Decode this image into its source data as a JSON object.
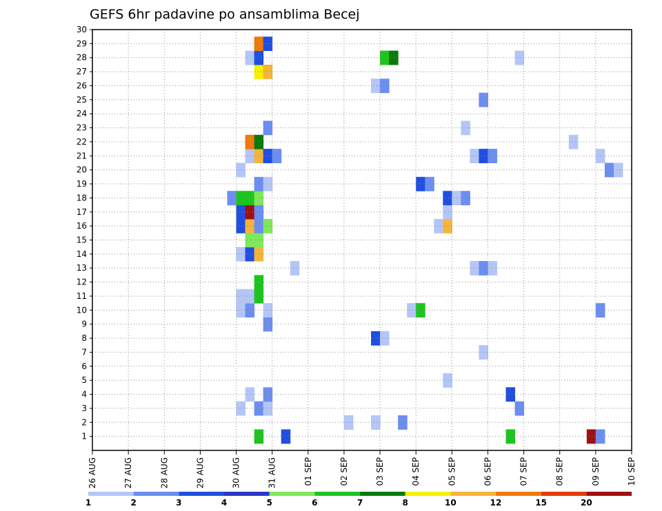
{
  "chart_data": {
    "type": "heatmap",
    "title": "GEFS 6hr padavine po ansamblima Becej",
    "x_labels": [
      "26 AUG",
      "27 AUG",
      "28 AUG",
      "29 AUG",
      "30 AUG",
      "31 AUG",
      "01 SEP",
      "02 SEP",
      "03 SEP",
      "04 SEP",
      "05 SEP",
      "06 SEP",
      "07 SEP",
      "08 SEP",
      "09 SEP",
      "10 SEP"
    ],
    "y_labels": [
      "1",
      "2",
      "3",
      "4",
      "5",
      "6",
      "7",
      "8",
      "9",
      "10",
      "11",
      "12",
      "13",
      "14",
      "15",
      "16",
      "17",
      "18",
      "19",
      "20",
      "21",
      "22",
      "23",
      "24",
      "25",
      "26",
      "27",
      "28",
      "29",
      "30"
    ],
    "y_range": [
      0,
      30
    ],
    "x_range_days": [
      0,
      15
    ],
    "grid": true,
    "colorbar": {
      "labels": [
        "1",
        "2",
        "3",
        "4",
        "5",
        "6",
        "7",
        "8",
        "10",
        "12",
        "15",
        "20"
      ],
      "colors": [
        "#b3c6f7",
        "#6b8ef0",
        "#1f4fe0",
        "#2a36c8",
        "#7ee85a",
        "#1ec41e",
        "#0a7a0a",
        "#f5f000",
        "#f5b43a",
        "#f07a0a",
        "#e03c0a",
        "#a01010",
        "#5a0a14"
      ]
    },
    "cells": [
      {
        "t": 18,
        "m": 1,
        "c": 6
      },
      {
        "t": 21,
        "m": 1,
        "c": 3
      },
      {
        "t": 46,
        "m": 1,
        "c": 6
      },
      {
        "t": 55,
        "m": 1,
        "c": 12
      },
      {
        "t": 56,
        "m": 1,
        "c": 2
      },
      {
        "t": 28,
        "m": 2,
        "c": 1
      },
      {
        "t": 31,
        "m": 2,
        "c": 1
      },
      {
        "t": 34,
        "m": 2,
        "c": 2
      },
      {
        "t": 16,
        "m": 3,
        "c": 1
      },
      {
        "t": 18,
        "m": 3,
        "c": 2
      },
      {
        "t": 19,
        "m": 3,
        "c": 1
      },
      {
        "t": 47,
        "m": 3,
        "c": 2
      },
      {
        "t": 17,
        "m": 4,
        "c": 1
      },
      {
        "t": 19,
        "m": 4,
        "c": 2
      },
      {
        "t": 46,
        "m": 4,
        "c": 3
      },
      {
        "t": 39,
        "m": 5,
        "c": 1
      },
      {
        "t": 43,
        "m": 7,
        "c": 1
      },
      {
        "t": 31,
        "m": 8,
        "c": 3
      },
      {
        "t": 32,
        "m": 8,
        "c": 1
      },
      {
        "t": 19,
        "m": 9,
        "c": 2
      },
      {
        "t": 16,
        "m": 10,
        "c": 1
      },
      {
        "t": 17,
        "m": 10,
        "c": 2
      },
      {
        "t": 19,
        "m": 10,
        "c": 1
      },
      {
        "t": 35,
        "m": 10,
        "c": 1
      },
      {
        "t": 36,
        "m": 10,
        "c": 6
      },
      {
        "t": 56,
        "m": 10,
        "c": 2
      },
      {
        "t": 16,
        "m": 11,
        "c": 1
      },
      {
        "t": 17,
        "m": 11,
        "c": 1
      },
      {
        "t": 18,
        "m": 11,
        "c": 6
      },
      {
        "t": 18,
        "m": 12,
        "c": 6
      },
      {
        "t": 22,
        "m": 13,
        "c": 1
      },
      {
        "t": 42,
        "m": 13,
        "c": 1
      },
      {
        "t": 43,
        "m": 13,
        "c": 2
      },
      {
        "t": 44,
        "m": 13,
        "c": 1
      },
      {
        "t": 16,
        "m": 14,
        "c": 1
      },
      {
        "t": 17,
        "m": 14,
        "c": 3
      },
      {
        "t": 18,
        "m": 14,
        "c": 9
      },
      {
        "t": 17,
        "m": 15,
        "c": 5
      },
      {
        "t": 18,
        "m": 15,
        "c": 5
      },
      {
        "t": 16,
        "m": 16,
        "c": 3
      },
      {
        "t": 17,
        "m": 16,
        "c": 9
      },
      {
        "t": 18,
        "m": 16,
        "c": 2
      },
      {
        "t": 19,
        "m": 16,
        "c": 5
      },
      {
        "t": 38,
        "m": 16,
        "c": 1
      },
      {
        "t": 39,
        "m": 16,
        "c": 9
      },
      {
        "t": 16,
        "m": 17,
        "c": 3
      },
      {
        "t": 17,
        "m": 17,
        "c": 12
      },
      {
        "t": 18,
        "m": 17,
        "c": 2
      },
      {
        "t": 39,
        "m": 17,
        "c": 1
      },
      {
        "t": 15,
        "m": 18,
        "c": 2
      },
      {
        "t": 16,
        "m": 18,
        "c": 6
      },
      {
        "t": 17,
        "m": 18,
        "c": 6
      },
      {
        "t": 18,
        "m": 18,
        "c": 5
      },
      {
        "t": 39,
        "m": 18,
        "c": 3
      },
      {
        "t": 40,
        "m": 18,
        "c": 1
      },
      {
        "t": 41,
        "m": 18,
        "c": 2
      },
      {
        "t": 18,
        "m": 19,
        "c": 2
      },
      {
        "t": 19,
        "m": 19,
        "c": 1
      },
      {
        "t": 36,
        "m": 19,
        "c": 3
      },
      {
        "t": 37,
        "m": 19,
        "c": 2
      },
      {
        "t": 16,
        "m": 20,
        "c": 1
      },
      {
        "t": 57,
        "m": 20,
        "c": 2
      },
      {
        "t": 58,
        "m": 20,
        "c": 1
      },
      {
        "t": 17,
        "m": 21,
        "c": 1
      },
      {
        "t": 18,
        "m": 21,
        "c": 9
      },
      {
        "t": 19,
        "m": 21,
        "c": 3
      },
      {
        "t": 20,
        "m": 21,
        "c": 2
      },
      {
        "t": 42,
        "m": 21,
        "c": 1
      },
      {
        "t": 43,
        "m": 21,
        "c": 3
      },
      {
        "t": 44,
        "m": 21,
        "c": 2
      },
      {
        "t": 56,
        "m": 21,
        "c": 1
      },
      {
        "t": 17,
        "m": 22,
        "c": 10
      },
      {
        "t": 18,
        "m": 22,
        "c": 7
      },
      {
        "t": 53,
        "m": 22,
        "c": 1
      },
      {
        "t": 19,
        "m": 23,
        "c": 2
      },
      {
        "t": 41,
        "m": 23,
        "c": 1
      },
      {
        "t": 43,
        "m": 25,
        "c": 2
      },
      {
        "t": 31,
        "m": 26,
        "c": 1
      },
      {
        "t": 32,
        "m": 26,
        "c": 2
      },
      {
        "t": 18,
        "m": 27,
        "c": 8
      },
      {
        "t": 19,
        "m": 27,
        "c": 9
      },
      {
        "t": 17,
        "m": 28,
        "c": 1
      },
      {
        "t": 18,
        "m": 28,
        "c": 3
      },
      {
        "t": 32,
        "m": 28,
        "c": 6
      },
      {
        "t": 33,
        "m": 28,
        "c": 7
      },
      {
        "t": 47,
        "m": 28,
        "c": 1
      },
      {
        "t": 18,
        "m": 29,
        "c": 10
      },
      {
        "t": 19,
        "m": 29,
        "c": 3
      }
    ]
  }
}
